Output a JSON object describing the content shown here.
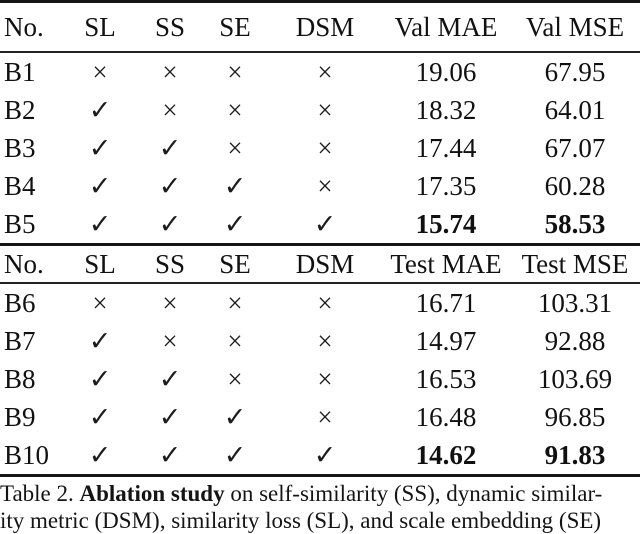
{
  "table": {
    "sections": [
      {
        "header": [
          "No.",
          "SL",
          "SS",
          "SE",
          "DSM",
          "Val MAE",
          "Val MSE"
        ],
        "rows": [
          [
            "B1",
            "×",
            "×",
            "×",
            "×",
            "19.06",
            "67.95"
          ],
          [
            "B2",
            "✓",
            "×",
            "×",
            "×",
            "18.32",
            "64.01"
          ],
          [
            "B3",
            "✓",
            "✓",
            "×",
            "×",
            "17.44",
            "67.07"
          ],
          [
            "B4",
            "✓",
            "✓",
            "✓",
            "×",
            "17.35",
            "60.28"
          ],
          [
            "B5",
            "✓",
            "✓",
            "✓",
            "✓",
            "15.74",
            "58.53"
          ]
        ],
        "bold_row_index": 4
      },
      {
        "header": [
          "No.",
          "SL",
          "SS",
          "SE",
          "DSM",
          "Test MAE",
          "Test MSE"
        ],
        "rows": [
          [
            "B6",
            "×",
            "×",
            "×",
            "×",
            "16.71",
            "103.31"
          ],
          [
            "B7",
            "✓",
            "×",
            "×",
            "×",
            "14.97",
            "92.88"
          ],
          [
            "B8",
            "✓",
            "✓",
            "×",
            "×",
            "16.53",
            "103.69"
          ],
          [
            "B9",
            "✓",
            "✓",
            "✓",
            "×",
            "16.48",
            "96.85"
          ],
          [
            "B10",
            "✓",
            "✓",
            "✓",
            "✓",
            "14.62",
            "91.83"
          ]
        ],
        "bold_row_index": 4
      }
    ],
    "marks": {
      "check": "✓",
      "cross": "×"
    },
    "text_color": "#111111",
    "rule_color": "#161616"
  },
  "caption": {
    "line1_prefix": "Table 2. ",
    "line1_bold": "Ablation study",
    "line1_rest": " on self-similarity (SS), dynamic similar-",
    "line2": "ity metric (DSM), similarity loss (SL), and scale embedding (SE)"
  }
}
